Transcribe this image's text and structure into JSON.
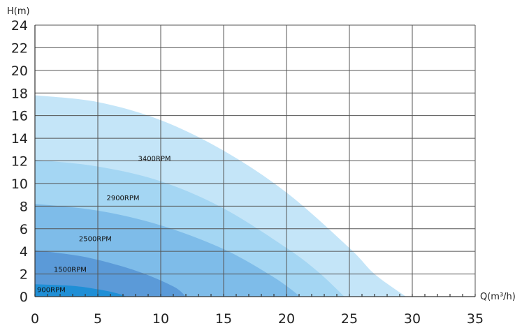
{
  "chart_data": {
    "type": "area",
    "xlabel": "Q(m³/h)",
    "ylabel": "H(m)",
    "xlim": [
      0,
      35
    ],
    "ylim": [
      0,
      24
    ],
    "xticks": [
      0,
      5,
      10,
      15,
      20,
      25,
      30,
      35
    ],
    "yticks": [
      0,
      2,
      4,
      6,
      8,
      10,
      12,
      14,
      16,
      18,
      20,
      22,
      24
    ],
    "grid": true,
    "series": [
      {
        "name": "3400RPM",
        "color": "#c4e5f8",
        "label_at": [
          9.5,
          12
        ],
        "points": [
          [
            0,
            17.8
          ],
          [
            5,
            17.2
          ],
          [
            10,
            15.6
          ],
          [
            15,
            12.9
          ],
          [
            20,
            9.2
          ],
          [
            25,
            4.3
          ],
          [
            27,
            2.0
          ],
          [
            29.5,
            0
          ]
        ]
      },
      {
        "name": "2900RPM",
        "color": "#a4d6f3",
        "label_at": [
          7,
          8.5
        ],
        "points": [
          [
            0,
            12.1
          ],
          [
            5,
            11.5
          ],
          [
            10,
            10.2
          ],
          [
            15,
            7.8
          ],
          [
            20,
            4.3
          ],
          [
            22.5,
            2.2
          ],
          [
            24.6,
            0
          ]
        ]
      },
      {
        "name": "2500RPM",
        "color": "#7ebce9",
        "label_at": [
          4.8,
          4.9
        ],
        "points": [
          [
            0,
            8.2
          ],
          [
            5,
            7.6
          ],
          [
            10,
            6.3
          ],
          [
            15,
            4.2
          ],
          [
            19,
            1.7
          ],
          [
            21.1,
            0
          ]
        ]
      },
      {
        "name": "1500RPM",
        "color": "#5b9ad8",
        "label_at": [
          2.8,
          2.2
        ],
        "points": [
          [
            0,
            4.1
          ],
          [
            4,
            3.5
          ],
          [
            8,
            2.3
          ],
          [
            11,
            0.9
          ],
          [
            12,
            0
          ]
        ]
      },
      {
        "name": "900RPM",
        "color": "#1f8fd6",
        "label_at": [
          1.3,
          0.4
        ],
        "points": [
          [
            0,
            1.1
          ],
          [
            3,
            0.95
          ],
          [
            5,
            0.65
          ],
          [
            6.5,
            0.3
          ],
          [
            7.3,
            0
          ]
        ]
      }
    ]
  }
}
